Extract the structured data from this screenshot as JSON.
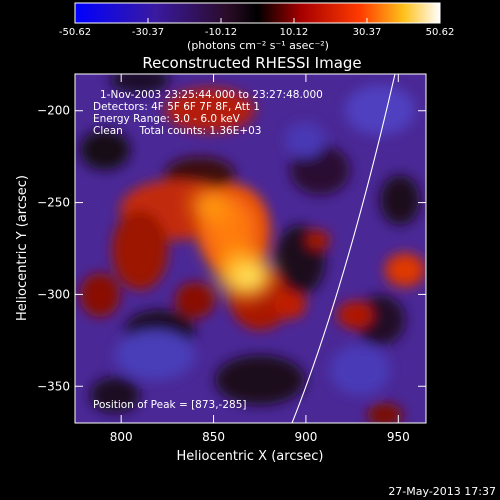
{
  "chart_data": {
    "type": "heatmap",
    "title": "Reconstructed RHESSI Image",
    "xlabel": "Heliocentric X (arcsec)",
    "ylabel": "Heliocentric Y (arcsec)",
    "xlim": [
      775,
      965
    ],
    "ylim": [
      -370,
      -180
    ],
    "x_ticks": [
      800,
      850,
      900,
      950
    ],
    "y_ticks": [
      -350,
      -300,
      -250,
      -200
    ],
    "annotations": [
      "1-Nov-2003 23:25:44.000 to 23:27:48.000",
      "Detectors: 4F 5F 6F 7F 8F, Att 1",
      "Energy Range: 3.0 - 6.0 keV",
      "Clean     Total counts: 1.36E+03"
    ],
    "peak_text": "Position of Peak = [873,-285]",
    "peak": [
      873,
      -285
    ],
    "colorbar": {
      "range": [
        -50.62,
        50.62
      ],
      "tick_labels": [
        "-50.62",
        "-30.37",
        "-10.12",
        "10.12",
        "30.37",
        "50.62"
      ],
      "unit_label": "(photons cm⁻² s⁻¹ asec⁻²)"
    },
    "grid": false
  },
  "footer": {
    "timestamp": "27-May-2013 17:37"
  }
}
